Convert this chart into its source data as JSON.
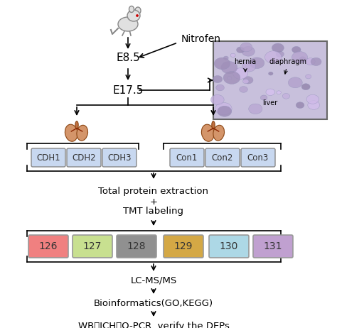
{
  "background_color": "#ffffff",
  "cdh_labels": [
    "CDH1",
    "CDH2",
    "CDH3"
  ],
  "con_labels": [
    "Con1",
    "Con2",
    "Con3"
  ],
  "tmt_labels": [
    "126",
    "127",
    "128",
    "129",
    "130",
    "131"
  ],
  "tmt_colors": [
    "#f08080",
    "#c8e090",
    "#909090",
    "#d4a845",
    "#add8e6",
    "#c0a0d0"
  ],
  "cdh_color": "#c8d8f0",
  "con_color": "#c8d8f0",
  "step1": "E8.5",
  "step2": "E17.5",
  "nitrofen": "Nitrofen",
  "protein_line1": "Total protein extraction",
  "protein_line2": "+",
  "protein_line3": "TMT labeling",
  "lcms_text": "LC-MS/MS",
  "bioinfo_text": "Bioinformatics(GO,KEGG)",
  "verify_text": "WB、ICH、Q-PCR  verify the DEPs",
  "hernia_label": "hernia",
  "diaphragm_label": "diaphragm",
  "liver_label": "liver",
  "histo_bg": "#c8c0dc",
  "histo_border": "#666666"
}
